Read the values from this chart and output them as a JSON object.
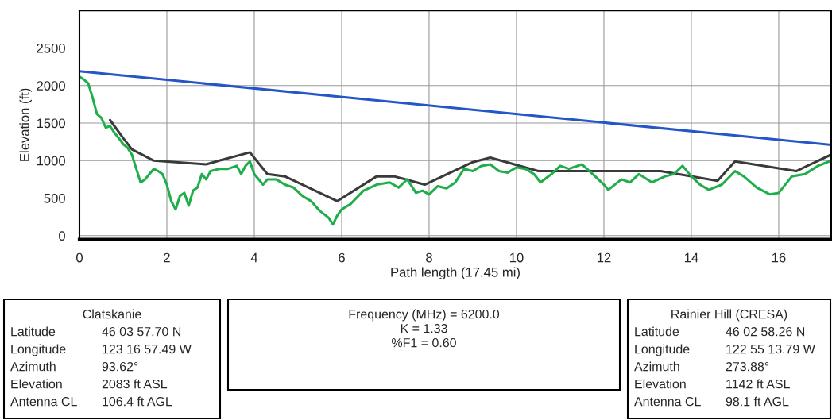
{
  "chart_data": {
    "type": "line",
    "xlabel": "Path length (17.45 mi)",
    "ylabel": "Elevation (ft)",
    "xlim": [
      0,
      17.2
    ],
    "ylim": [
      -50,
      3000
    ],
    "xticks": [
      0,
      2,
      4,
      6,
      8,
      10,
      12,
      14,
      16
    ],
    "yticks": [
      0,
      500,
      1000,
      1500,
      2000,
      2500
    ],
    "grid": true,
    "marker": "none",
    "line_style": "solid",
    "series": [
      {
        "color": "#3a3a3a",
        "x": [
          0.7,
          1.0,
          1.2,
          1.7,
          2.9,
          3.2,
          3.9,
          4.3,
          4.7,
          5.9,
          6.8,
          7.2,
          7.9,
          9.0,
          9.4,
          10.5,
          12.5,
          13.3,
          14.6,
          15.0,
          16.4,
          17.2
        ],
        "values": [
          1540,
          1300,
          1150,
          1000,
          950,
          1000,
          1110,
          820,
          790,
          460,
          790,
          790,
          680,
          980,
          1040,
          860,
          860,
          860,
          730,
          990,
          860,
          1080
        ]
      },
      {
        "color": "#1fae4b",
        "x": [
          0,
          0.1,
          0.2,
          0.3,
          0.4,
          0.5,
          0.6,
          0.7,
          0.8,
          0.9,
          1.0,
          1.1,
          1.2,
          1.3,
          1.4,
          1.5,
          1.6,
          1.7,
          1.8,
          1.9,
          2.0,
          2.1,
          2.2,
          2.3,
          2.4,
          2.5,
          2.6,
          2.7,
          2.8,
          2.9,
          3.0,
          3.2,
          3.4,
          3.6,
          3.7,
          3.8,
          3.9,
          4.0,
          4.2,
          4.3,
          4.5,
          4.7,
          4.9,
          5.1,
          5.3,
          5.5,
          5.7,
          5.8,
          5.9,
          6.0,
          6.2,
          6.5,
          6.8,
          7.1,
          7.3,
          7.5,
          7.7,
          7.85,
          8.0,
          8.2,
          8.4,
          8.6,
          8.8,
          9.0,
          9.2,
          9.4,
          9.6,
          9.8,
          10.0,
          10.2,
          10.4,
          10.55,
          10.8,
          11.0,
          11.2,
          11.5,
          11.8,
          12.0,
          12.1,
          12.4,
          12.6,
          12.8,
          13.1,
          13.4,
          13.6,
          13.8,
          14.0,
          14.2,
          14.4,
          14.7,
          15.0,
          15.2,
          15.5,
          15.8,
          16.0,
          16.3,
          16.6,
          16.9,
          17.2
        ],
        "values": [
          2120,
          2080,
          2030,
          1840,
          1620,
          1570,
          1440,
          1460,
          1370,
          1300,
          1220,
          1170,
          1080,
          890,
          710,
          750,
          820,
          890,
          860,
          820,
          680,
          460,
          350,
          530,
          570,
          400,
          600,
          640,
          820,
          750,
          860,
          890,
          890,
          930,
          820,
          930,
          990,
          820,
          680,
          750,
          750,
          680,
          640,
          530,
          460,
          330,
          240,
          150,
          270,
          350,
          420,
          600,
          680,
          710,
          640,
          750,
          570,
          600,
          550,
          660,
          630,
          710,
          890,
          860,
          930,
          950,
          860,
          840,
          910,
          890,
          820,
          710,
          820,
          930,
          890,
          950,
          790,
          680,
          610,
          750,
          710,
          820,
          710,
          790,
          820,
          930,
          790,
          680,
          610,
          680,
          860,
          790,
          640,
          550,
          570,
          790,
          820,
          930,
          1000
        ]
      },
      {
        "color": "#2456c8",
        "x": [
          0,
          17.2
        ],
        "values": [
          2190,
          1210
        ]
      }
    ],
    "annotations": [
      "Clatskanie\nLatitude\t46 03 57.70 N\nLongitude\t123 16 57.49 W\nAzimuth\t93.62°\nElevation\t2083 ft ASL\nAntenna CL\t106.4 ft AGL",
      "Frequency (MHz) = 6200.0\nK = 1.33\n%F1 = 0.60",
      "Rainier Hill (CRESA)\nLatitude\t46 02 58.26 N\nLongitude\t122 55 13.79 W\nAzimuth\t273.88°\nElevation\t1142 ft ASL\nAntenna CL\t98.1 ft AGL"
    ]
  }
}
